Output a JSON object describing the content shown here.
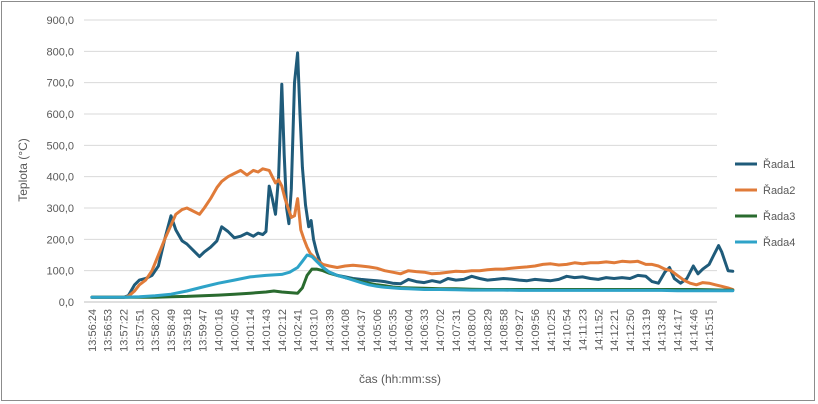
{
  "chart_data": {
    "type": "line",
    "xlabel": "čas (hh:mm:ss)",
    "ylabel": "Teplota (°C)",
    "ylim": [
      0,
      900
    ],
    "yticks": [
      "0,0",
      "100,0",
      "200,0",
      "300,0",
      "400,0",
      "500,0",
      "600,0",
      "700,0",
      "800,0",
      "900,0"
    ],
    "grid": "horizontal",
    "legend": "right",
    "categories": [
      "13:56:24",
      "13:56:53",
      "13:57:22",
      "13:57:51",
      "13:58:20",
      "13:58:49",
      "13:59:18",
      "13:59:47",
      "14:00:16",
      "14:00:45",
      "14:01:14",
      "14:01:43",
      "14:02:12",
      "14:02:41",
      "14:03:10",
      "14:03:39",
      "14:04:08",
      "14:04:37",
      "14:05:06",
      "14:05:35",
      "14:06:04",
      "14:06:33",
      "14:07:02",
      "14:07:31",
      "14:08:00",
      "14:08:29",
      "14:08:58",
      "14:09:27",
      "14:09:56",
      "14:10:25",
      "14:10:54",
      "14:11:23",
      "14:11:52",
      "14:12:21",
      "14:12:50",
      "14:13:19",
      "14:13:48",
      "14:14:17",
      "14:14:46",
      "14:15:15"
    ],
    "series": [
      {
        "name": "Řada1",
        "color": "#1f5b7a",
        "points": [
          [
            0,
            15
          ],
          [
            1,
            15
          ],
          [
            2,
            15
          ],
          [
            2.3,
            20
          ],
          [
            2.7,
            55
          ],
          [
            3,
            70
          ],
          [
            3.4,
            75
          ],
          [
            3.8,
            85
          ],
          [
            4.2,
            115
          ],
          [
            4.6,
            200
          ],
          [
            5,
            275
          ],
          [
            5.3,
            230
          ],
          [
            5.7,
            195
          ],
          [
            6,
            185
          ],
          [
            6.4,
            165
          ],
          [
            6.8,
            145
          ],
          [
            7.1,
            160
          ],
          [
            7.5,
            175
          ],
          [
            7.9,
            195
          ],
          [
            8.2,
            240
          ],
          [
            8.6,
            225
          ],
          [
            9,
            205
          ],
          [
            9.4,
            210
          ],
          [
            9.8,
            220
          ],
          [
            10.2,
            210
          ],
          [
            10.5,
            220
          ],
          [
            10.8,
            215
          ],
          [
            11,
            225
          ],
          [
            11.2,
            370
          ],
          [
            11.4,
            330
          ],
          [
            11.6,
            280
          ],
          [
            11.8,
            400
          ],
          [
            12,
            695
          ],
          [
            12.15,
            470
          ],
          [
            12.3,
            300
          ],
          [
            12.45,
            250
          ],
          [
            12.6,
            360
          ],
          [
            12.8,
            700
          ],
          [
            13,
            795
          ],
          [
            13.15,
            600
          ],
          [
            13.3,
            430
          ],
          [
            13.5,
            310
          ],
          [
            13.7,
            240
          ],
          [
            13.85,
            260
          ],
          [
            14,
            200
          ],
          [
            14.2,
            160
          ],
          [
            14.4,
            130
          ],
          [
            14.6,
            110
          ],
          [
            15,
            95
          ],
          [
            15.5,
            85
          ],
          [
            16,
            80
          ],
          [
            16.5,
            75
          ],
          [
            17,
            72
          ],
          [
            17.5,
            70
          ],
          [
            18,
            68
          ],
          [
            18.5,
            65
          ],
          [
            19,
            60
          ],
          [
            19.5,
            58
          ],
          [
            20,
            72
          ],
          [
            20.5,
            65
          ],
          [
            21,
            62
          ],
          [
            21.5,
            68
          ],
          [
            22,
            63
          ],
          [
            22.5,
            75
          ],
          [
            23,
            70
          ],
          [
            23.5,
            72
          ],
          [
            24,
            82
          ],
          [
            24.5,
            75
          ],
          [
            25,
            70
          ],
          [
            25.5,
            72
          ],
          [
            26,
            75
          ],
          [
            26.5,
            73
          ],
          [
            27,
            70
          ],
          [
            27.5,
            68
          ],
          [
            28,
            72
          ],
          [
            28.5,
            70
          ],
          [
            29,
            68
          ],
          [
            29.5,
            72
          ],
          [
            30,
            82
          ],
          [
            30.5,
            78
          ],
          [
            31,
            80
          ],
          [
            31.5,
            75
          ],
          [
            32,
            72
          ],
          [
            32.5,
            78
          ],
          [
            33,
            75
          ],
          [
            33.5,
            78
          ],
          [
            34,
            75
          ],
          [
            34.5,
            85
          ],
          [
            35,
            82
          ],
          [
            35.4,
            65
          ],
          [
            35.8,
            60
          ],
          [
            36.2,
            95
          ],
          [
            36.5,
            110
          ],
          [
            36.8,
            75
          ],
          [
            37.2,
            60
          ],
          [
            37.6,
            75
          ],
          [
            38,
            115
          ],
          [
            38.3,
            90
          ],
          [
            38.6,
            105
          ],
          [
            39,
            120
          ],
          [
            39.3,
            150
          ],
          [
            39.6,
            180
          ],
          [
            39.8,
            160
          ],
          [
            40,
            130
          ],
          [
            40.2,
            100
          ],
          [
            40.5,
            98
          ]
        ]
      },
      {
        "name": "Řada2",
        "color": "#e07b39",
        "points": [
          [
            0,
            15
          ],
          [
            1,
            15
          ],
          [
            2,
            15
          ],
          [
            2.3,
            18
          ],
          [
            2.7,
            35
          ],
          [
            3,
            55
          ],
          [
            3.4,
            70
          ],
          [
            3.8,
            100
          ],
          [
            4.2,
            150
          ],
          [
            4.6,
            200
          ],
          [
            5,
            245
          ],
          [
            5.3,
            280
          ],
          [
            5.7,
            295
          ],
          [
            6,
            300
          ],
          [
            6.4,
            290
          ],
          [
            6.8,
            280
          ],
          [
            7.1,
            300
          ],
          [
            7.5,
            330
          ],
          [
            7.9,
            365
          ],
          [
            8.2,
            385
          ],
          [
            8.6,
            400
          ],
          [
            9,
            410
          ],
          [
            9.4,
            420
          ],
          [
            9.8,
            405
          ],
          [
            10.2,
            420
          ],
          [
            10.5,
            415
          ],
          [
            10.8,
            425
          ],
          [
            11.2,
            420
          ],
          [
            11.4,
            400
          ],
          [
            11.6,
            380
          ],
          [
            11.8,
            390
          ],
          [
            12,
            370
          ],
          [
            12.2,
            330
          ],
          [
            12.4,
            300
          ],
          [
            12.6,
            270
          ],
          [
            12.8,
            275
          ],
          [
            13,
            330
          ],
          [
            13.2,
            230
          ],
          [
            13.4,
            200
          ],
          [
            13.6,
            175
          ],
          [
            13.8,
            155
          ],
          [
            14,
            145
          ],
          [
            14.3,
            130
          ],
          [
            14.6,
            120
          ],
          [
            15,
            115
          ],
          [
            15.5,
            110
          ],
          [
            16,
            115
          ],
          [
            16.5,
            117
          ],
          [
            17,
            115
          ],
          [
            17.5,
            112
          ],
          [
            18,
            108
          ],
          [
            18.5,
            100
          ],
          [
            19,
            95
          ],
          [
            19.5,
            90
          ],
          [
            20,
            100
          ],
          [
            20.5,
            97
          ],
          [
            21,
            95
          ],
          [
            21.5,
            90
          ],
          [
            22,
            92
          ],
          [
            22.5,
            95
          ],
          [
            23,
            98
          ],
          [
            23.5,
            97
          ],
          [
            24,
            100
          ],
          [
            24.5,
            100
          ],
          [
            25,
            103
          ],
          [
            25.5,
            105
          ],
          [
            26,
            105
          ],
          [
            26.5,
            108
          ],
          [
            27,
            110
          ],
          [
            27.5,
            112
          ],
          [
            28,
            115
          ],
          [
            28.5,
            120
          ],
          [
            29,
            122
          ],
          [
            29.5,
            118
          ],
          [
            30,
            120
          ],
          [
            30.5,
            125
          ],
          [
            31,
            122
          ],
          [
            31.5,
            125
          ],
          [
            32,
            125
          ],
          [
            32.5,
            128
          ],
          [
            33,
            125
          ],
          [
            33.5,
            130
          ],
          [
            34,
            128
          ],
          [
            34.5,
            130
          ],
          [
            35,
            120
          ],
          [
            35.4,
            120
          ],
          [
            35.8,
            115
          ],
          [
            36.2,
            105
          ],
          [
            36.6,
            100
          ],
          [
            37,
            85
          ],
          [
            37.4,
            70
          ],
          [
            37.8,
            60
          ],
          [
            38.2,
            55
          ],
          [
            38.6,
            62
          ],
          [
            39,
            60
          ],
          [
            39.4,
            55
          ],
          [
            39.8,
            50
          ],
          [
            40.2,
            45
          ],
          [
            40.5,
            40
          ]
        ]
      },
      {
        "name": "Řada3",
        "color": "#2a6b2f",
        "points": [
          [
            0,
            15
          ],
          [
            3,
            15
          ],
          [
            4,
            15
          ],
          [
            5,
            17
          ],
          [
            6,
            18
          ],
          [
            7,
            20
          ],
          [
            8,
            22
          ],
          [
            9,
            25
          ],
          [
            10,
            28
          ],
          [
            11,
            32
          ],
          [
            11.5,
            35
          ],
          [
            12,
            32
          ],
          [
            12.5,
            30
          ],
          [
            13,
            28
          ],
          [
            13.3,
            45
          ],
          [
            13.6,
            85
          ],
          [
            13.9,
            105
          ],
          [
            14.2,
            105
          ],
          [
            14.6,
            100
          ],
          [
            15,
            92
          ],
          [
            15.5,
            85
          ],
          [
            16,
            78
          ],
          [
            16.5,
            72
          ],
          [
            17,
            65
          ],
          [
            17.5,
            60
          ],
          [
            18,
            55
          ],
          [
            18.5,
            52
          ],
          [
            19,
            48
          ],
          [
            19.5,
            46
          ],
          [
            20,
            45
          ],
          [
            21,
            44
          ],
          [
            22,
            42
          ],
          [
            23,
            42
          ],
          [
            24,
            41
          ],
          [
            25,
            40
          ],
          [
            26,
            40
          ],
          [
            27,
            40
          ],
          [
            28,
            40
          ],
          [
            29,
            40
          ],
          [
            30,
            40
          ],
          [
            31,
            40
          ],
          [
            32,
            40
          ],
          [
            33,
            40
          ],
          [
            34,
            40
          ],
          [
            35,
            40
          ],
          [
            36,
            40
          ],
          [
            37,
            40
          ],
          [
            38,
            40
          ],
          [
            39,
            39
          ],
          [
            40,
            38
          ],
          [
            40.5,
            38
          ]
        ]
      },
      {
        "name": "Řada4",
        "color": "#2ea3c8",
        "points": [
          [
            0,
            15
          ],
          [
            2,
            15
          ],
          [
            3,
            17
          ],
          [
            4,
            20
          ],
          [
            5,
            25
          ],
          [
            6,
            35
          ],
          [
            7,
            48
          ],
          [
            8,
            60
          ],
          [
            9,
            70
          ],
          [
            10,
            80
          ],
          [
            11,
            85
          ],
          [
            12,
            88
          ],
          [
            12.5,
            95
          ],
          [
            13,
            110
          ],
          [
            13.3,
            130
          ],
          [
            13.6,
            150
          ],
          [
            13.9,
            145
          ],
          [
            14.2,
            130
          ],
          [
            14.6,
            110
          ],
          [
            15,
            95
          ],
          [
            15.5,
            85
          ],
          [
            16,
            78
          ],
          [
            16.5,
            70
          ],
          [
            17,
            62
          ],
          [
            17.5,
            55
          ],
          [
            18,
            50
          ],
          [
            18.5,
            47
          ],
          [
            19,
            45
          ],
          [
            19.5,
            43
          ],
          [
            20,
            42
          ],
          [
            21,
            40
          ],
          [
            22,
            40
          ],
          [
            23,
            39
          ],
          [
            24,
            38
          ],
          [
            25,
            38
          ],
          [
            26,
            38
          ],
          [
            27,
            37
          ],
          [
            28,
            37
          ],
          [
            29,
            37
          ],
          [
            30,
            37
          ],
          [
            31,
            37
          ],
          [
            32,
            37
          ],
          [
            33,
            37
          ],
          [
            34,
            37
          ],
          [
            35,
            37
          ],
          [
            36,
            37
          ],
          [
            37,
            36
          ],
          [
            38,
            36
          ],
          [
            39,
            36
          ],
          [
            40,
            36
          ],
          [
            40.5,
            36
          ]
        ]
      }
    ]
  }
}
